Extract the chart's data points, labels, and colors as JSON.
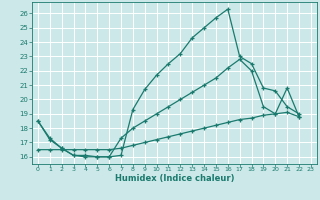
{
  "xlabel": "Humidex (Indice chaleur)",
  "bg_color": "#cce8e8",
  "grid_color": "#b8d8d8",
  "line_color": "#1a7a6e",
  "xlim": [
    -0.5,
    23.5
  ],
  "ylim": [
    15.5,
    26.8
  ],
  "xticks": [
    0,
    1,
    2,
    3,
    4,
    5,
    6,
    7,
    8,
    9,
    10,
    11,
    12,
    13,
    14,
    15,
    16,
    17,
    18,
    19,
    20,
    21,
    22,
    23
  ],
  "yticks": [
    16,
    17,
    18,
    19,
    20,
    21,
    22,
    23,
    24,
    25,
    26
  ],
  "curve1_x": [
    0,
    1,
    2,
    3,
    4,
    5,
    6,
    7,
    8,
    9,
    10,
    11,
    12,
    13,
    14,
    15,
    16,
    17,
    18,
    19,
    20,
    21,
    22
  ],
  "curve1_y": [
    18.5,
    17.2,
    16.6,
    16.1,
    16.1,
    16.0,
    16.0,
    16.1,
    19.3,
    20.7,
    21.7,
    22.5,
    23.2,
    24.3,
    25.0,
    25.7,
    26.3,
    23.0,
    22.5,
    20.8,
    20.6,
    19.5,
    19.0
  ],
  "curve2_x": [
    0,
    1,
    2,
    3,
    4,
    5,
    6,
    7,
    8,
    9,
    10,
    11,
    12,
    13,
    14,
    15,
    16,
    17,
    18,
    19,
    20,
    21,
    22
  ],
  "curve2_y": [
    18.5,
    17.3,
    16.6,
    16.1,
    16.0,
    16.0,
    16.0,
    17.3,
    18.0,
    18.5,
    19.0,
    19.5,
    20.0,
    20.5,
    21.0,
    21.5,
    22.2,
    22.8,
    22.0,
    19.5,
    19.0,
    20.8,
    18.8
  ],
  "curve3_x": [
    0,
    1,
    2,
    3,
    4,
    5,
    6,
    7,
    8,
    9,
    10,
    11,
    12,
    13,
    14,
    15,
    16,
    17,
    18,
    19,
    20,
    21,
    22
  ],
  "curve3_y": [
    16.5,
    16.5,
    16.5,
    16.5,
    16.5,
    16.5,
    16.5,
    16.6,
    16.8,
    17.0,
    17.2,
    17.4,
    17.6,
    17.8,
    18.0,
    18.2,
    18.4,
    18.6,
    18.7,
    18.9,
    19.0,
    19.1,
    18.8
  ]
}
